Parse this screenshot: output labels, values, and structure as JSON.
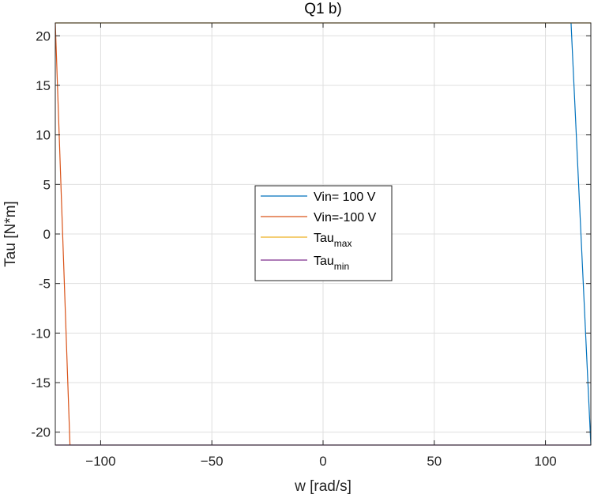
{
  "chart_data": {
    "type": "line",
    "title": "Q1 b)",
    "xlabel": "w [rad/s]",
    "ylabel": "Tau [N*m]",
    "xlim": [
      -120.4,
      120.4
    ],
    "ylim": [
      -21.3,
      21.3
    ],
    "xticks": [
      -100,
      -50,
      0,
      50,
      100
    ],
    "yticks": [
      -20,
      -15,
      -10,
      -5,
      0,
      5,
      10,
      15,
      20
    ],
    "grid": true,
    "legend_position": "center",
    "series": [
      {
        "name": "Vin= 100 V",
        "color": "#0072BD",
        "x": [
          111.5,
          120.4
        ],
        "y": [
          21.3,
          -21.3
        ]
      },
      {
        "name": "Vin=-100 V",
        "color": "#D95319",
        "x": [
          -120.4,
          -113.8
        ],
        "y": [
          21.3,
          -21.3
        ]
      },
      {
        "name": "Tau",
        "name_subscript": "max",
        "color": "#EDB120",
        "x": [
          -120.4,
          120.4
        ],
        "y": [
          21.3,
          21.3
        ]
      },
      {
        "name": "Tau",
        "name_subscript": "min",
        "color": "#7E2F8E",
        "x": [
          -120.4,
          120.4
        ],
        "y": [
          -21.3,
          -21.3
        ]
      }
    ]
  }
}
